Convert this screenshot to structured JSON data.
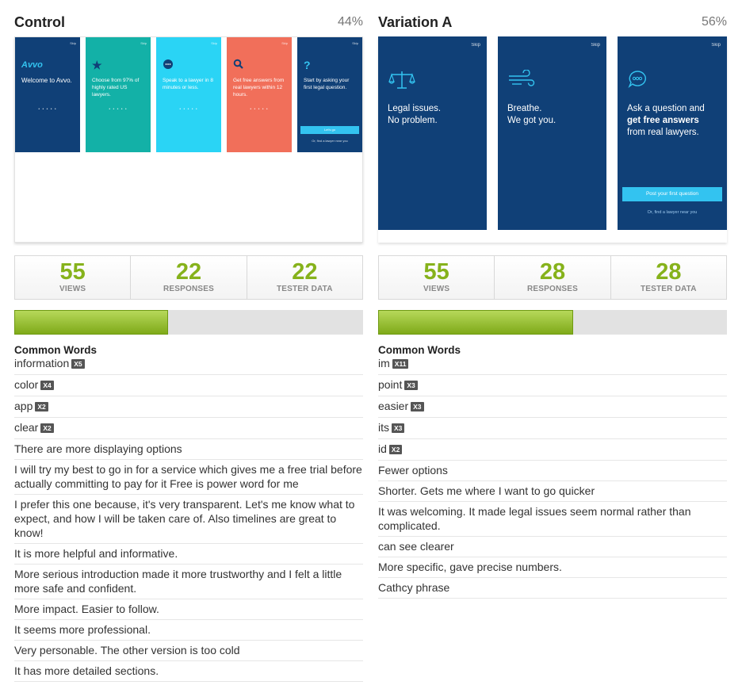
{
  "control": {
    "title": "Control",
    "percent": "44%",
    "screens": [
      {
        "skip": "Skip",
        "logo": "Avvo",
        "text": "Welcome to Avvo.",
        "dots": "• • • • •",
        "color": "#104077"
      },
      {
        "skip": "Skip",
        "icon": "star-icon",
        "text": "Choose from 97% of highly rated US lawyers.",
        "dots": "• • • • •",
        "color": "#13b1a7"
      },
      {
        "skip": "Skip",
        "icon": "chat-bubble-icon",
        "text": "Speak to a lawyer in 8 minutes or less.",
        "dots": "• • • • •",
        "color": "#2ad4f5"
      },
      {
        "skip": "Skip",
        "icon": "magnifier-icon",
        "text": "Get free answers from real lawyers within 12 hours.",
        "dots": "• • • • •",
        "color": "#f16f5a"
      },
      {
        "skip": "Skip",
        "icon": "question-icon",
        "text": "Start by asking your first legal question.",
        "cta": "Let's go",
        "sub": "Or, find a lawyer near you",
        "color": "#104077"
      }
    ],
    "stats": [
      {
        "value": "55",
        "label": "VIEWS"
      },
      {
        "value": "22",
        "label": "RESPONSES"
      },
      {
        "value": "22",
        "label": "TESTER DATA"
      }
    ],
    "progress": 0.44,
    "common_words_title": "Common Words",
    "words": [
      {
        "word": "information",
        "count": "X5"
      },
      {
        "word": "color",
        "count": "X4"
      },
      {
        "word": "app",
        "count": "X2"
      },
      {
        "word": "clear",
        "count": "X2"
      }
    ],
    "comments": [
      "There are more displaying options",
      "I will try my best to go in for a service which gives me a free trial before actually committing to pay for it Free is power word for me",
      "I prefer this one because, it's very transparent. Let's me know what to expect, and how I will be taken care of. Also timelines are great to know!",
      "It is more helpful and informative.",
      "More serious introduction made it more trustworthy and I felt a little more safe and confident.",
      "More impact. Easier to follow.",
      "It seems more professional.",
      "Very personable. The other version is too cold",
      "It has more detailed sections."
    ]
  },
  "variation": {
    "title": "Variation A",
    "percent": "56%",
    "screens": [
      {
        "skip": "Skip",
        "icon": "scales-icon",
        "text_line1": "Legal issues.",
        "text_line2": "No problem."
      },
      {
        "skip": "Skip",
        "icon": "wind-icon",
        "text_line1": "Breathe.",
        "text_line2": "We got you."
      },
      {
        "skip": "Skip",
        "icon": "chat-bubble-icon",
        "text_line1": "Ask a question and",
        "text_bold": "get free answers",
        "text_line3": "from real lawyers.",
        "cta": "Post your first question",
        "sub": "Or, find a lawyer near you"
      }
    ],
    "stats": [
      {
        "value": "55",
        "label": "VIEWS"
      },
      {
        "value": "28",
        "label": "RESPONSES"
      },
      {
        "value": "28",
        "label": "TESTER DATA"
      }
    ],
    "progress": 0.56,
    "common_words_title": "Common Words",
    "words": [
      {
        "word": "im",
        "count": "X11"
      },
      {
        "word": "point",
        "count": "X3"
      },
      {
        "word": "easier",
        "count": "X3"
      },
      {
        "word": "its",
        "count": "X3"
      },
      {
        "word": "id",
        "count": "X2"
      }
    ],
    "comments": [
      "Fewer options",
      "Shorter. Gets me where I want to go quicker",
      "It was welcoming. It made legal issues seem normal rather than complicated.",
      "can see clearer",
      "More specific, gave precise numbers.",
      "Cathcy phrase"
    ]
  },
  "colors": {
    "accent_green": "#86b21b",
    "navy": "#104077",
    "cyan": "#33c3f0"
  }
}
